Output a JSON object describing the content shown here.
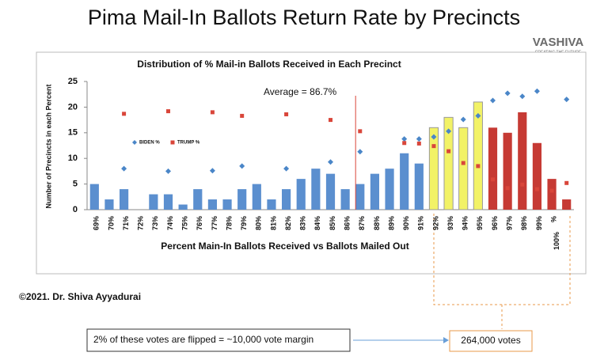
{
  "header": {
    "title": "Pima Mail-In Ballots Return Rate by Precincts",
    "logo": "VASHIVA",
    "logo_tagline": "CREATING THE FUTURE"
  },
  "chart_data": {
    "type": "bar",
    "title": "Distribution of % Mail-in Ballots Received in Each Precinct",
    "y_label": "Number of Precincts in each Percent",
    "x_label": "Percent Main-In Ballots Received vs Ballots Mailed Out",
    "categories": [
      "69%",
      "70%",
      "71%",
      "72%",
      "73%",
      "74%",
      "75%",
      "76%",
      "77%",
      "78%",
      "79%",
      "80%",
      "81%",
      "82%",
      "83%",
      "84%",
      "85%",
      "86%",
      "87%",
      "88%",
      "89%",
      "90%",
      "91%",
      "92%",
      "93%",
      "94%",
      "95%",
      "96%",
      "97%",
      "98%",
      "99%",
      "%",
      "100%"
    ],
    "values": [
      5,
      2,
      4,
      0,
      3,
      3,
      1,
      4,
      2,
      2,
      4,
      5,
      2,
      4,
      6,
      8,
      7,
      4,
      5,
      7,
      8,
      11,
      9,
      16,
      18,
      16,
      21,
      16,
      15,
      19,
      13,
      6,
      2
    ],
    "bar_colors": [
      "#5b8fcf",
      "#5b8fcf",
      "#5b8fcf",
      "#5b8fcf",
      "#5b8fcf",
      "#5b8fcf",
      "#5b8fcf",
      "#5b8fcf",
      "#5b8fcf",
      "#5b8fcf",
      "#5b8fcf",
      "#5b8fcf",
      "#5b8fcf",
      "#5b8fcf",
      "#5b8fcf",
      "#5b8fcf",
      "#5b8fcf",
      "#5b8fcf",
      "#5b8fcf",
      "#5b8fcf",
      "#5b8fcf",
      "#5b8fcf",
      "#5b8fcf",
      "#f2f266",
      "#f2f266",
      "#f2f266",
      "#f2f266",
      "#c63a34",
      "#c63a34",
      "#c63a34",
      "#c63a34",
      "#c63a34",
      "#c63a34"
    ],
    "series": [
      {
        "name": "BIDEN %",
        "color": "#4a86c8",
        "marker": "diamond",
        "values": [
          null,
          null,
          8,
          null,
          null,
          7.5,
          null,
          null,
          7.6,
          null,
          8.5,
          null,
          null,
          8,
          null,
          null,
          9.3,
          null,
          11.3,
          null,
          null,
          13.8,
          13.8,
          14.2,
          15.3,
          17.6,
          18.3,
          21.3,
          22.7,
          22.1,
          23.1,
          null,
          21.5
        ]
      },
      {
        "name": "TRUMP %",
        "color": "#d9463a",
        "marker": "square",
        "values": [
          null,
          null,
          18.7,
          null,
          null,
          19.2,
          null,
          null,
          19,
          null,
          18.3,
          null,
          null,
          18.6,
          null,
          null,
          17.5,
          null,
          15.3,
          null,
          null,
          13,
          12.9,
          12.4,
          11.4,
          9.1,
          8.5,
          5.9,
          4.2,
          4.9,
          4,
          3.7,
          5.2
        ]
      }
    ],
    "ylim": [
      0,
      25
    ],
    "yticks": [
      0,
      5,
      10,
      15,
      20,
      25
    ],
    "average": {
      "label": "Average = 86.7%",
      "value": 86.7
    }
  },
  "footer": {
    "copyright": "©2021. Dr. Shiva Ayyadurai",
    "note": "2% of these votes are flipped = ~10,000 vote margin",
    "total": "264,000 votes"
  }
}
